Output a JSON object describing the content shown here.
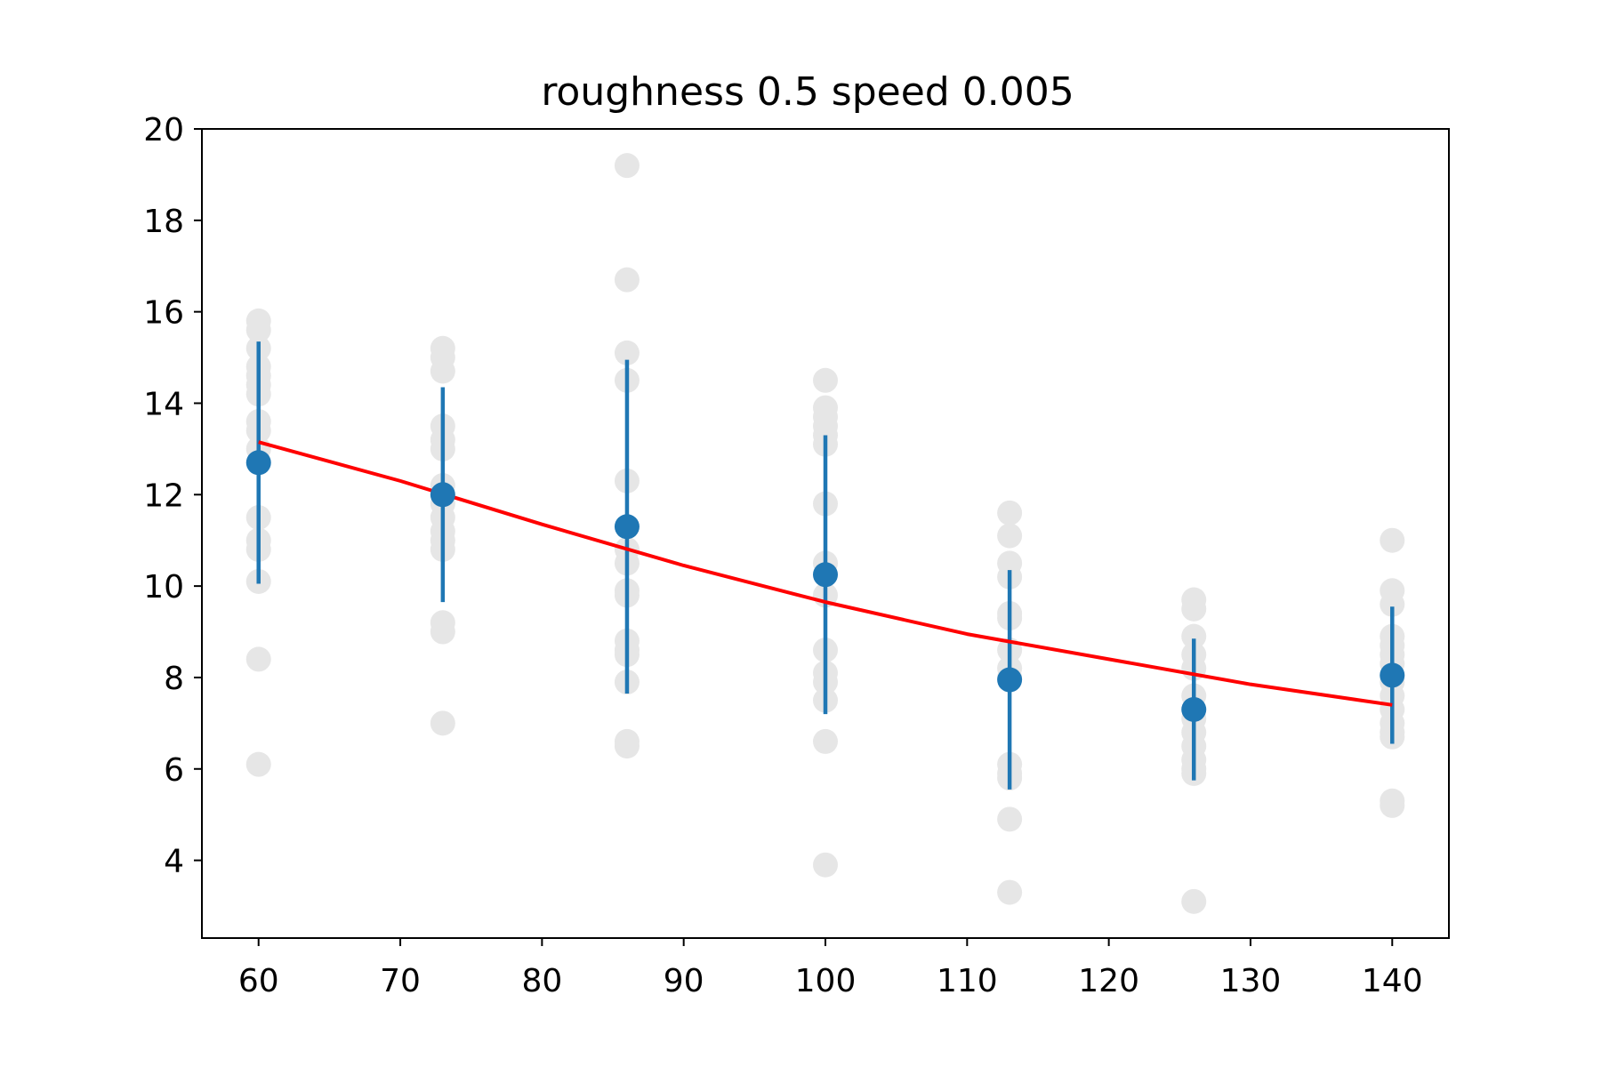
{
  "chart_data": {
    "type": "scatter",
    "title": "roughness 0.5 speed 0.005",
    "xlabel": "",
    "ylabel": "",
    "xlim": [
      56,
      144
    ],
    "ylim": [
      2.3,
      20
    ],
    "xticks": [
      60,
      70,
      80,
      90,
      100,
      110,
      120,
      130,
      140
    ],
    "xtick_labels": [
      "60",
      "70",
      "80",
      "90",
      "100",
      "110",
      "120",
      "130",
      "140"
    ],
    "yticks": [
      4,
      6,
      8,
      10,
      12,
      14,
      16,
      18,
      20
    ],
    "ytick_labels": [
      "4",
      "6",
      "8",
      "10",
      "12",
      "14",
      "16",
      "18",
      "20"
    ],
    "grid": false,
    "raw_points": [
      {
        "x": 60,
        "values": [
          15.8,
          15.6,
          15.2,
          14.8,
          14.6,
          14.4,
          14.2,
          13.6,
          13.4,
          13.0,
          11.5,
          11.0,
          10.8,
          10.1,
          8.4,
          6.1
        ]
      },
      {
        "x": 73,
        "values": [
          15.2,
          15.0,
          14.7,
          13.5,
          13.2,
          13.0,
          12.2,
          11.8,
          11.5,
          11.2,
          11.0,
          10.8,
          9.2,
          9.0,
          7.0
        ]
      },
      {
        "x": 86,
        "values": [
          19.2,
          16.7,
          15.1,
          14.5,
          12.3,
          10.8,
          10.5,
          9.9,
          9.8,
          8.8,
          8.6,
          8.5,
          7.9,
          6.6,
          6.5
        ]
      },
      {
        "x": 100,
        "values": [
          14.5,
          13.9,
          13.7,
          13.5,
          13.3,
          13.1,
          11.8,
          10.5,
          9.8,
          8.6,
          8.1,
          7.9,
          7.5,
          6.6,
          3.9
        ]
      },
      {
        "x": 113,
        "values": [
          11.6,
          11.1,
          10.5,
          10.2,
          9.4,
          9.3,
          8.6,
          8.2,
          8.0,
          6.1,
          5.9,
          5.8,
          4.9,
          3.3
        ]
      },
      {
        "x": 126,
        "values": [
          9.7,
          9.5,
          8.9,
          8.5,
          8.2,
          7.6,
          7.1,
          6.8,
          6.5,
          6.2,
          6.0,
          5.9,
          3.1
        ]
      },
      {
        "x": 140,
        "values": [
          11.0,
          9.9,
          9.6,
          8.9,
          8.7,
          8.5,
          8.3,
          7.9,
          7.6,
          7.3,
          7.0,
          6.8,
          6.7,
          5.3,
          5.2
        ]
      }
    ],
    "means": {
      "x": [
        60,
        73,
        86,
        100,
        113,
        126,
        140
      ],
      "y": [
        12.7,
        12.0,
        11.3,
        10.25,
        7.95,
        7.3,
        8.05
      ],
      "yerr": [
        2.65,
        2.35,
        3.65,
        3.05,
        2.4,
        1.55,
        1.5
      ]
    },
    "fit_curve": {
      "x": [
        60,
        70,
        80,
        90,
        100,
        110,
        120,
        130,
        140
      ],
      "y": [
        13.15,
        12.3,
        11.35,
        10.45,
        9.65,
        8.95,
        8.4,
        7.85,
        7.4
      ]
    },
    "colors": {
      "raw": "#e6e6e6",
      "means": "#1f77b4",
      "fit": "#ff0000",
      "axes": "#000000"
    }
  }
}
